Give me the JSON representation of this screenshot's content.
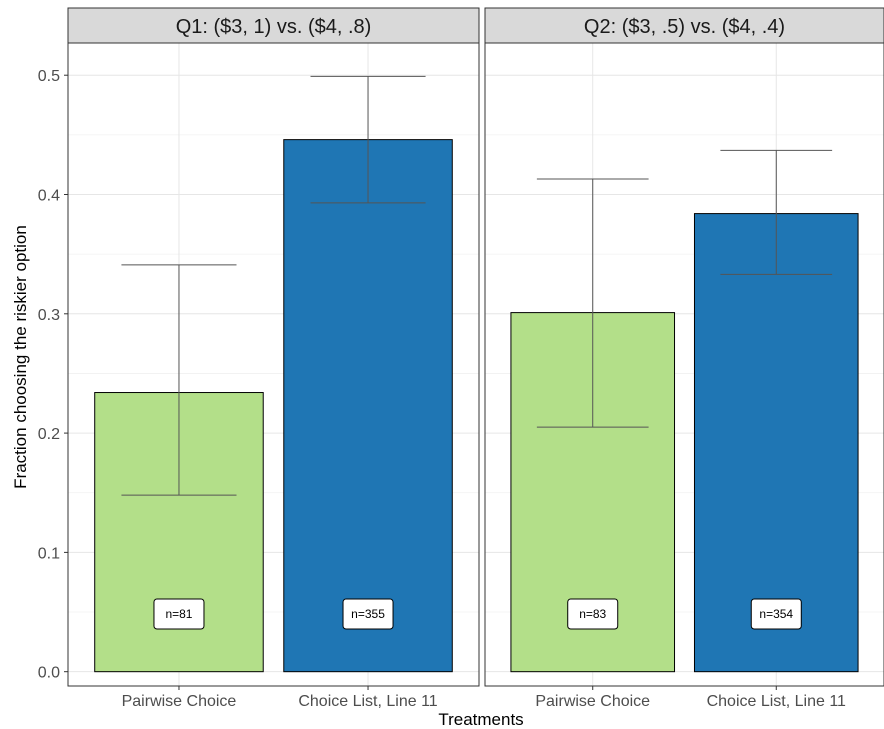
{
  "chart_data": {
    "type": "bar",
    "xlabel": "Treatments",
    "ylabel": "Fraction choosing the riskier option",
    "ylim": [
      -0.012,
      0.527
    ],
    "yticks": [
      0.0,
      0.1,
      0.2,
      0.3,
      0.4,
      0.5
    ],
    "ytick_labels": [
      "0.0",
      "0.1",
      "0.2",
      "0.3",
      "0.4",
      "0.5"
    ],
    "grid": true,
    "legend": "none",
    "categories": [
      "Pairwise Choice",
      "Choice List, Line 11"
    ],
    "colors": {
      "Pairwise Choice": "#b3df89",
      "Choice List, Line 11": "#1f76b4"
    },
    "panels": [
      {
        "title": "Q1: ($3, 1) vs. ($4, .8)",
        "bars": [
          {
            "category": "Pairwise Choice",
            "value": 0.234,
            "ci_low": 0.148,
            "ci_high": 0.341,
            "n_label": "n=81"
          },
          {
            "category": "Choice List, Line 11",
            "value": 0.446,
            "ci_low": 0.393,
            "ci_high": 0.499,
            "n_label": "n=355"
          }
        ]
      },
      {
        "title": "Q2: ($3, .5) vs. ($4, .4)",
        "bars": [
          {
            "category": "Pairwise Choice",
            "value": 0.301,
            "ci_low": 0.205,
            "ci_high": 0.413,
            "n_label": "n=83"
          },
          {
            "category": "Choice List, Line 11",
            "value": 0.384,
            "ci_low": 0.333,
            "ci_high": 0.437,
            "n_label": "n=354"
          }
        ]
      }
    ]
  }
}
